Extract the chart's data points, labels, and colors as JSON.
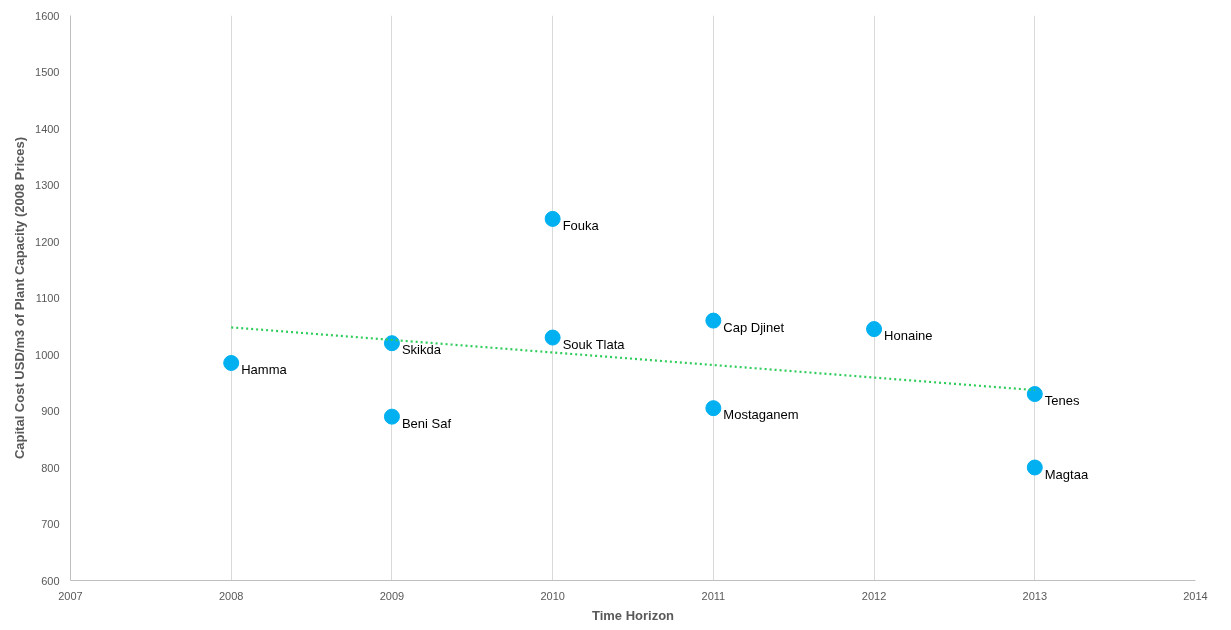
{
  "chart_data": {
    "type": "scatter",
    "xlabel": "Time Horizon",
    "ylabel": "Capital Cost USD/m3 of Plant Capacity (2008 Prices)",
    "series": [
      {
        "color": "#00b0f0",
        "marker": "circle",
        "x": [
          2008,
          2009,
          2009,
          2010,
          2010,
          2011,
          2011,
          2012,
          2013,
          2013
        ],
        "values": [
          985,
          1020,
          890,
          1240,
          1030,
          1060,
          905,
          1045,
          930,
          800
        ]
      },
      {
        "type": "line",
        "color": "#2ecc5a",
        "line_style": "dotted",
        "marker": "none",
        "x": [
          2008,
          2013
        ],
        "values": [
          1048,
          937
        ]
      }
    ],
    "annotations": [
      {
        "text": "Hamma",
        "x": 2008,
        "y": 985
      },
      {
        "text": "Skikda",
        "x": 2009,
        "y": 1020
      },
      {
        "text": "Beni Saf",
        "x": 2009,
        "y": 890
      },
      {
        "text": "Fouka",
        "x": 2010,
        "y": 1240
      },
      {
        "text": "Souk Tlata",
        "x": 2010,
        "y": 1030
      },
      {
        "text": "Cap Djinet",
        "x": 2011,
        "y": 1060
      },
      {
        "text": "Mostaganem",
        "x": 2011,
        "y": 905
      },
      {
        "text": "Honaine",
        "x": 2012,
        "y": 1045
      },
      {
        "text": "Tenes",
        "x": 2013,
        "y": 930
      },
      {
        "text": "Magtaa",
        "x": 2013,
        "y": 800
      }
    ],
    "xlim": [
      2007,
      2014
    ],
    "xticks": [
      2007,
      2008,
      2009,
      2010,
      2011,
      2012,
      2013,
      2014
    ],
    "ylim": [
      600,
      1600
    ],
    "yticks": [
      600,
      700,
      800,
      900,
      1000,
      1100,
      1200,
      1300,
      1400,
      1500,
      1600
    ],
    "grid": "x"
  }
}
